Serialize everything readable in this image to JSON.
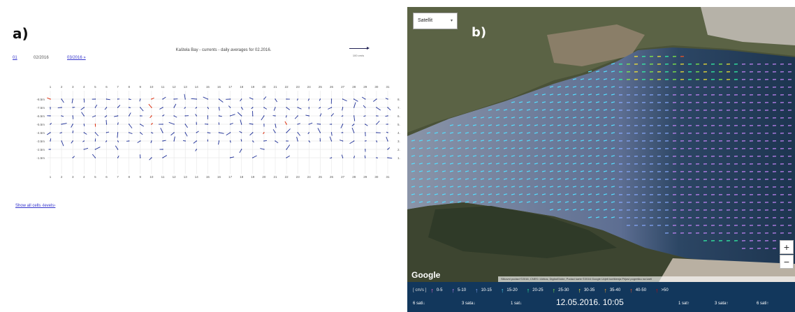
{
  "panel_a": {
    "label": "a)",
    "nav": {
      "prev": "01",
      "current": "02/2016",
      "next": "03/2016 »"
    },
    "title": "Kaštela Bay - currents - daily averages for 02.2016.",
    "scale_label": "100 cm/s",
    "depth_labels": [
      "-8.5m",
      "-7.5m",
      "-6.5m",
      "-5.5m",
      "-4.5m",
      "-3.5m",
      "-2.5m",
      "-1.5m"
    ],
    "right_labels": [
      "8.",
      "7.",
      "6.",
      "5.",
      "4.",
      "3.",
      "2.",
      "1."
    ],
    "days": [
      "1",
      "2",
      "3",
      "4",
      "5",
      "6",
      "7",
      "8",
      "9",
      "10",
      "11",
      "12",
      "13",
      "14",
      "15",
      "16",
      "17",
      "18",
      "19",
      "20",
      "21",
      "22",
      "23",
      "24",
      "25",
      "26",
      "27",
      "28",
      "29",
      "30",
      "31"
    ],
    "show_link": "Show all cells ‹levels›",
    "arrow_color": "#223399",
    "highlight_color": "#dd2200"
  },
  "panel_b": {
    "label": "b)",
    "layer": "Satellit",
    "zoom_in": "+",
    "zoom_out": "−",
    "google": "Google",
    "attribution": "Slikovni podaci ©2016, CNES / Airbus, DigitalGlobe, Podaci karte ©2016 Google  Uvjeti korištenja  Prijavi pogrešku na karti",
    "legend": {
      "unit": "[ cm/s ]",
      "items": [
        {
          "label": "0-5",
          "color": "#ff66cc"
        },
        {
          "label": "5-10",
          "color": "#cc88ff"
        },
        {
          "label": "10-15",
          "color": "#88aaff"
        },
        {
          "label": "15-20",
          "color": "#55ddff"
        },
        {
          "label": "20-25",
          "color": "#33ffaa"
        },
        {
          "label": "25-30",
          "color": "#88ff44"
        },
        {
          "label": "30-35",
          "color": "#ffee33"
        },
        {
          "label": "35-40",
          "color": "#ffaa22"
        },
        {
          "label": "40-50",
          "color": "#ff5522"
        },
        {
          "label": ">50",
          "color": "#dd0000"
        }
      ]
    },
    "time_nav": {
      "back6": "6 sati↓",
      "back3": "3 sata↓",
      "back1": "1 sat↓",
      "timestamp": "12.05.2016. 10:05",
      "fwd1": "1 sat↑",
      "fwd3": "3 sata↑",
      "fwd6": "6 sati↑"
    }
  }
}
